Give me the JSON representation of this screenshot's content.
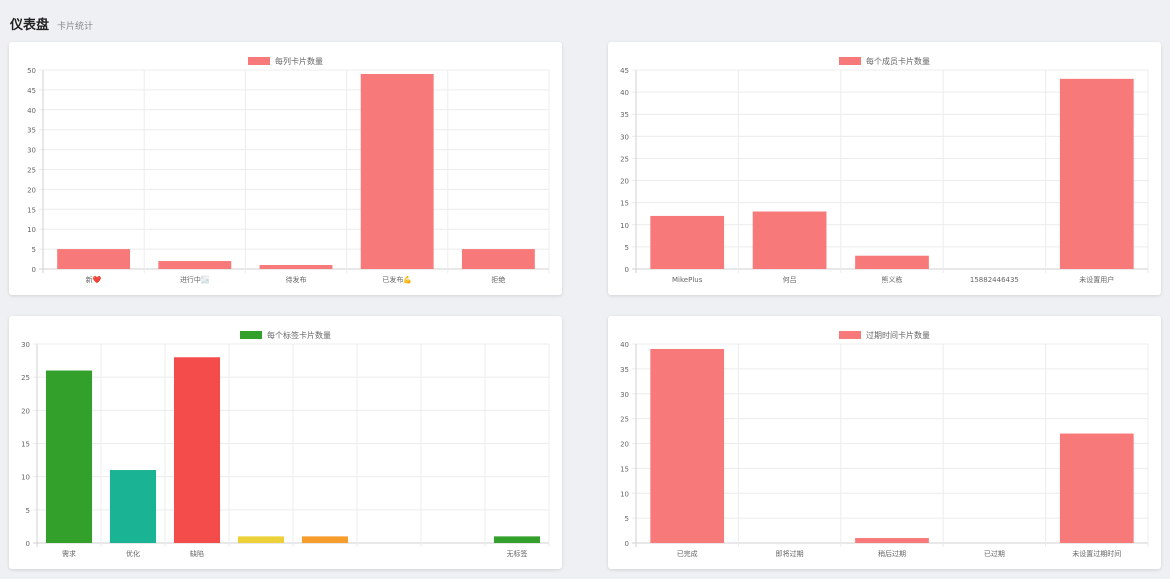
{
  "header": {
    "title": "仪表盘",
    "subtitle": "卡片统计"
  },
  "chart_data": [
    {
      "type": "bar",
      "legend": "每列卡片数量",
      "legend_color": "#f87979",
      "legend_placement": "top",
      "categories": [
        "新❤️",
        "进行中🌫️",
        "待发布",
        "已发布💪",
        "拒绝"
      ],
      "values": [
        5,
        2,
        1,
        49,
        5
      ],
      "colors": [
        "#f87979",
        "#f87979",
        "#f87979",
        "#f87979",
        "#f87979"
      ],
      "ylim": [
        0,
        50
      ],
      "yticks": [
        0,
        5,
        10,
        15,
        20,
        25,
        30,
        35,
        40,
        45,
        50
      ],
      "grid": true
    },
    {
      "type": "bar",
      "legend": "每个成员卡片数量",
      "legend_color": "#f87979",
      "legend_placement": "top",
      "categories": [
        "MikePlus",
        "何吕",
        "熊义栋",
        "15882446435",
        "未设置用户"
      ],
      "values": [
        12,
        13,
        3,
        0,
        43
      ],
      "colors": [
        "#f87979",
        "#f87979",
        "#f87979",
        "#f87979",
        "#f87979"
      ],
      "ylim": [
        0,
        45
      ],
      "yticks": [
        0,
        5,
        10,
        15,
        20,
        25,
        30,
        35,
        40,
        45
      ],
      "grid": true
    },
    {
      "type": "bar",
      "legend": "每个标签卡片数量",
      "legend_color": "#33a02c",
      "legend_placement": "top",
      "categories": [
        "需求",
        "优化",
        "缺陷",
        "",
        "",
        "",
        "",
        "无标签"
      ],
      "values": [
        26,
        11,
        28,
        1,
        1,
        0,
        0,
        1
      ],
      "colors": [
        "#33a02c",
        "#1ab394",
        "#f44b4b",
        "#ecd03a",
        "#f79d2e",
        "#f87979",
        "#f87979",
        "#33a02c"
      ],
      "ylim": [
        0,
        30
      ],
      "yticks": [
        0,
        5,
        10,
        15,
        20,
        25,
        30
      ],
      "grid": true
    },
    {
      "type": "bar",
      "legend": "过期时间卡片数量",
      "legend_color": "#f87979",
      "legend_placement": "top",
      "categories": [
        "已完成",
        "即将过期",
        "稍后过期",
        "已过期",
        "未设置过期时间"
      ],
      "values": [
        39,
        0,
        1,
        0,
        22
      ],
      "colors": [
        "#f87979",
        "#f87979",
        "#f87979",
        "#f87979",
        "#f87979"
      ],
      "ylim": [
        0,
        40
      ],
      "yticks": [
        0,
        5,
        10,
        15,
        20,
        25,
        30,
        35,
        40
      ],
      "grid": true
    }
  ]
}
